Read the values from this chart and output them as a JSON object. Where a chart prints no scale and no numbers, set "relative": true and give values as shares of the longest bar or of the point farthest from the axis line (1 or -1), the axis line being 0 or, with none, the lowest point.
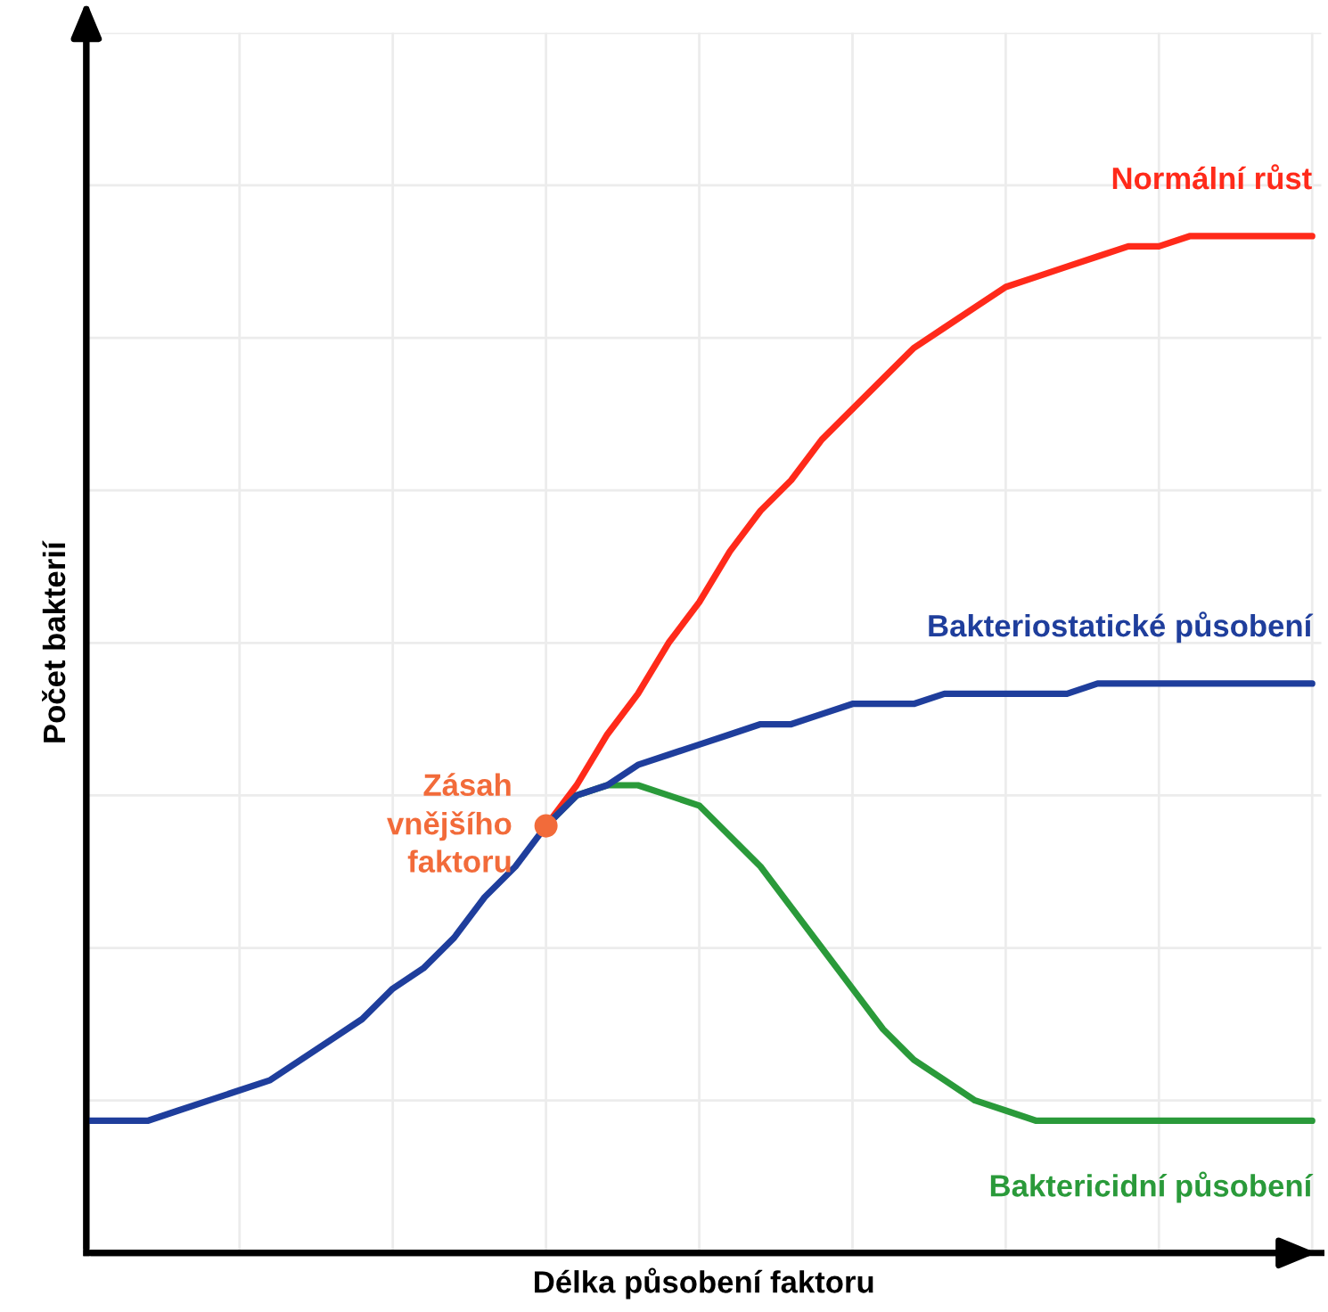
{
  "chart_data": {
    "type": "line",
    "relative": true,
    "xlabel": "Délka působení faktoru",
    "ylabel": "Počet bakterií",
    "categories": [
      null,
      null,
      null,
      null,
      null,
      null,
      null,
      null,
      null,
      null,
      null,
      null,
      null,
      null,
      null,
      null,
      null,
      null,
      null,
      null,
      null,
      null,
      null,
      null,
      null,
      null,
      null,
      null,
      null,
      null,
      null,
      null,
      null,
      null,
      null,
      null,
      null,
      null,
      null,
      null,
      null
    ],
    "series": [
      {
        "name": "Normální růst",
        "color": "#ff2a1a",
        "values": [
          null,
          null,
          null,
          null,
          null,
          null,
          null,
          null,
          null,
          null,
          null,
          null,
          null,
          null,
          null,
          0.42,
          0.46,
          0.51,
          0.55,
          0.6,
          0.64,
          0.69,
          0.73,
          0.76,
          0.8,
          0.83,
          0.86,
          0.89,
          0.91,
          0.93,
          0.95,
          0.96,
          0.97,
          0.98,
          0.99,
          0.99,
          1.0,
          1.0,
          1.0,
          1.0,
          1.0
        ]
      },
      {
        "name": "Baktericidní působení",
        "color": "#2a9a3a",
        "values": [
          null,
          null,
          null,
          null,
          null,
          null,
          null,
          null,
          null,
          null,
          null,
          null,
          null,
          null,
          null,
          0.42,
          0.45,
          0.46,
          0.46,
          0.45,
          0.44,
          0.41,
          0.38,
          0.34,
          0.3,
          0.26,
          0.22,
          0.19,
          0.17,
          0.15,
          0.14,
          0.13,
          0.13,
          0.13,
          0.13,
          0.13,
          0.13,
          0.13,
          0.13,
          0.13,
          0.13
        ]
      },
      {
        "name": "Bakteriostatické působení",
        "color": "#1f3e9c",
        "values": [
          0.13,
          0.13,
          0.13,
          0.14,
          0.15,
          0.16,
          0.17,
          0.19,
          0.21,
          0.23,
          0.26,
          0.28,
          0.31,
          0.35,
          0.38,
          0.42,
          0.45,
          0.46,
          0.48,
          0.49,
          0.5,
          0.51,
          0.52,
          0.52,
          0.53,
          0.54,
          0.54,
          0.54,
          0.55,
          0.55,
          0.55,
          0.55,
          0.55,
          0.56,
          0.56,
          0.56,
          0.56,
          0.56,
          0.56,
          0.56,
          0.56
        ]
      }
    ],
    "annotations": [
      "Zásah\nvnějšího\nfaktoru"
    ],
    "grid": true,
    "tick_labels": false
  }
}
